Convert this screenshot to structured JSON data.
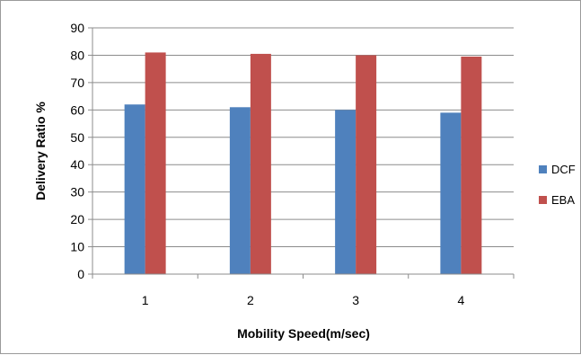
{
  "chart_data": {
    "type": "bar",
    "title": "",
    "xlabel": "Mobility Speed(m/sec)",
    "ylabel": "Delivery Ratio %",
    "categories": [
      "1",
      "2",
      "3",
      "4"
    ],
    "series": [
      {
        "name": "DCF",
        "values": [
          62,
          61,
          60,
          59
        ],
        "color": "#4f81bd"
      },
      {
        "name": "EBA",
        "values": [
          81,
          80.5,
          80,
          79.5
        ],
        "color": "#c0504d"
      }
    ],
    "ylim": [
      0,
      90
    ],
    "yticks": [
      "0",
      "10",
      "20",
      "30",
      "40",
      "50",
      "60",
      "70",
      "80",
      "90"
    ],
    "grid": true,
    "legend_position": "right"
  }
}
